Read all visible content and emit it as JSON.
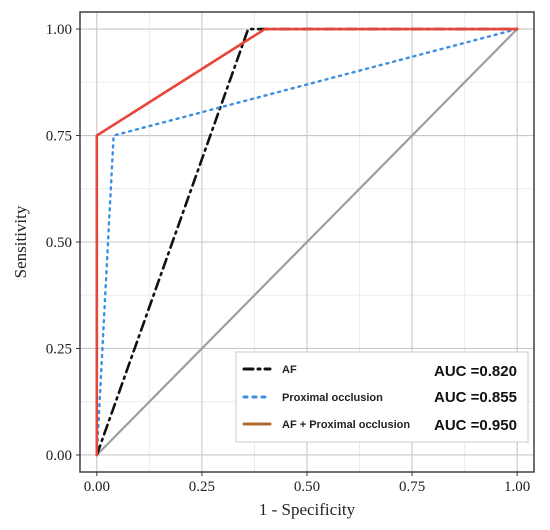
{
  "chart_data": {
    "type": "line",
    "title": "",
    "xlabel": "1 - Specificity",
    "ylabel": "Sensitivity",
    "xlim": [
      -0.04,
      1.04
    ],
    "ylim": [
      -0.04,
      1.04
    ],
    "xticks": [
      0.0,
      0.25,
      0.5,
      0.75,
      1.0
    ],
    "yticks": [
      0.0,
      0.25,
      0.5,
      0.75,
      1.0
    ],
    "xtick_labels": [
      "0.00",
      "0.25",
      "0.50",
      "0.75",
      "1.00"
    ],
    "ytick_labels": [
      "0.00",
      "0.25",
      "0.50",
      "0.75",
      "1.00"
    ],
    "grid": true,
    "legend_position": "bottom-right",
    "reference_line": {
      "x": [
        0,
        1
      ],
      "y": [
        0,
        1
      ],
      "color": "#9e9e9e"
    },
    "series": [
      {
        "name": "AF",
        "style": "dashdot",
        "color": "#111111",
        "x": [
          0.0,
          0.36,
          0.38,
          1.0
        ],
        "y": [
          0.0,
          1.0,
          1.0,
          1.0
        ]
      },
      {
        "name": "Proximal occlusion",
        "style": "dotted",
        "color": "#3a8fe0",
        "x": [
          0.0,
          0.04,
          1.0
        ],
        "y": [
          0.0,
          0.75,
          1.0
        ]
      },
      {
        "name": "AF + Proximal occlusion",
        "style": "solid",
        "color": "#e8463a",
        "legend_color": "#b0692e",
        "x": [
          0.0,
          0.0,
          0.4,
          1.0
        ],
        "y": [
          0.0,
          0.75,
          1.0,
          1.0
        ]
      }
    ],
    "annotations": [
      "AUC =0.820",
      "AUC =0.855",
      "AUC =0.950"
    ]
  }
}
